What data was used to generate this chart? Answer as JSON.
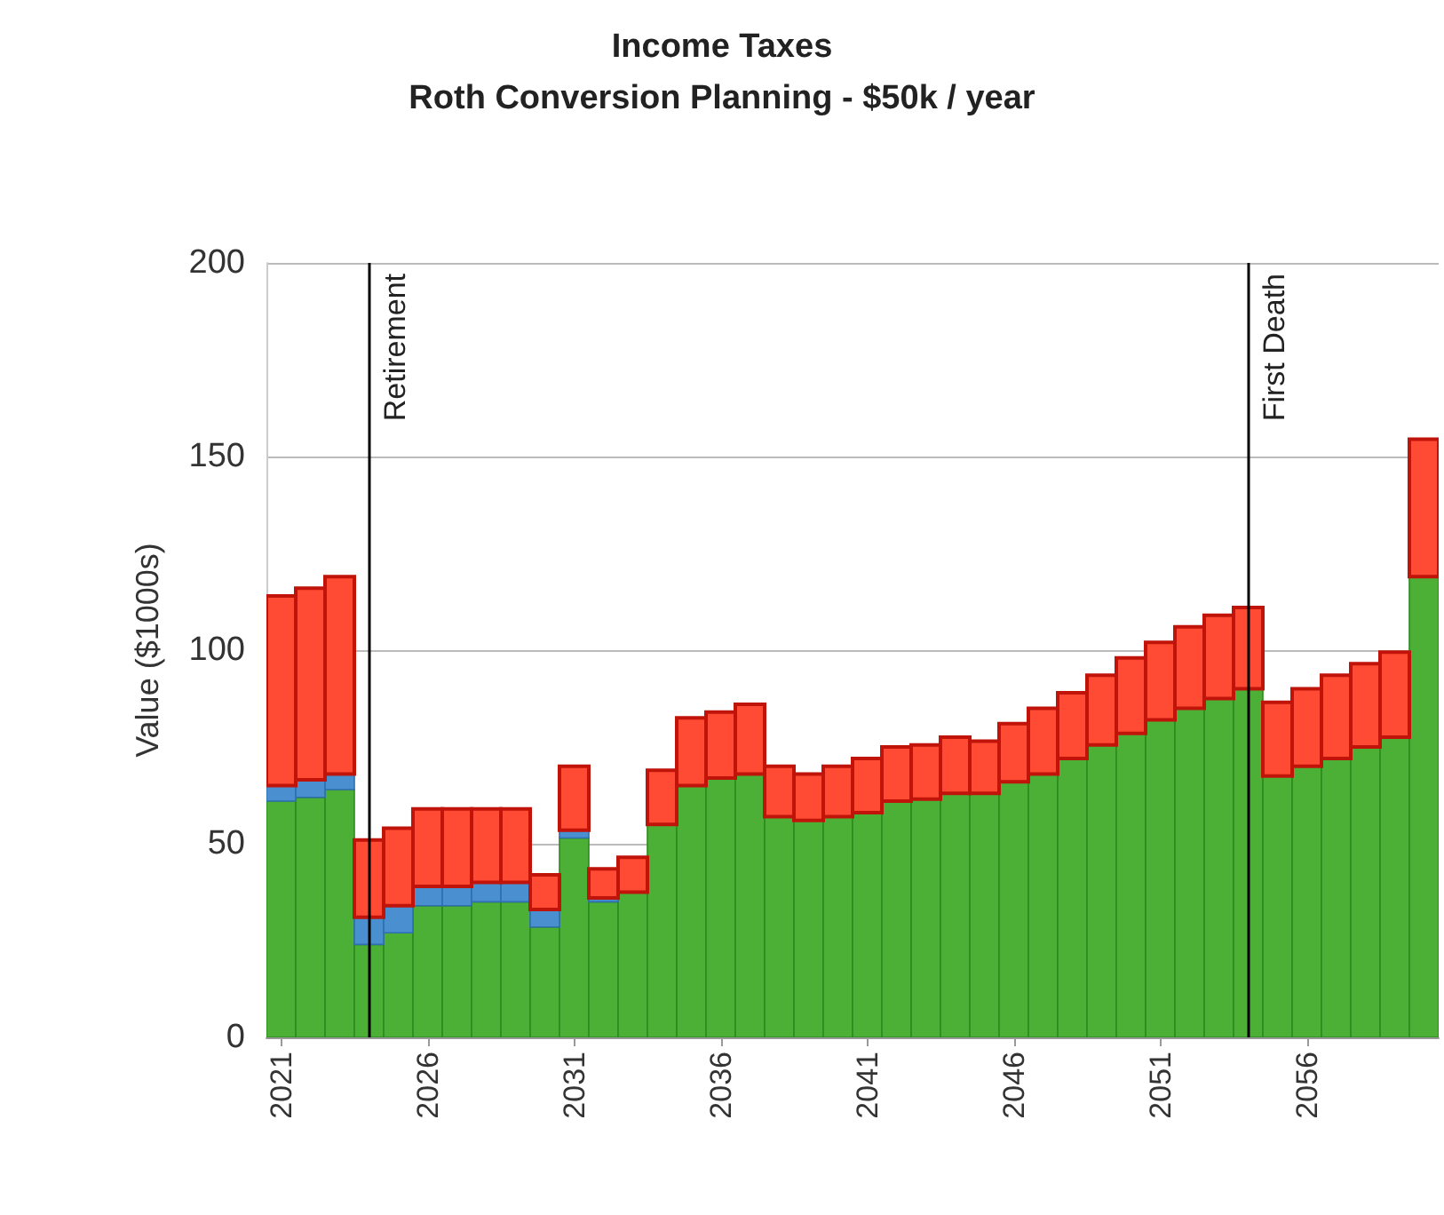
{
  "chart_data": {
    "type": "bar",
    "title": "Income Taxes",
    "subtitle": "Roth Conversion Planning - $50k / year",
    "ylabel": "Value ($1000s)",
    "x": [
      2021,
      2022,
      2023,
      2024,
      2025,
      2026,
      2027,
      2028,
      2029,
      2030,
      2031,
      2032,
      2033,
      2034,
      2035,
      2036,
      2037,
      2038,
      2039,
      2040,
      2041,
      2042,
      2043,
      2044,
      2045,
      2046,
      2047,
      2048,
      2049,
      2050,
      2051,
      2052,
      2053,
      2054,
      2055,
      2056,
      2057,
      2058,
      2059,
      2060
    ],
    "xlim": [
      2020.5,
      2060.5
    ],
    "xticks": [
      2021,
      2026,
      2031,
      2036,
      2041,
      2046,
      2051,
      2056
    ],
    "ylim": [
      0,
      200
    ],
    "yticks": [
      0,
      50,
      100,
      150,
      200
    ],
    "grid": "y",
    "stacked": true,
    "series": [
      {
        "color": "#4db036",
        "values": [
          61,
          62,
          64,
          24,
          27,
          34,
          34,
          35,
          35,
          28.5,
          51.5,
          35,
          37.5,
          55,
          65,
          67,
          68,
          57,
          56,
          57,
          58,
          61,
          61.5,
          63,
          63,
          66,
          68,
          72,
          75.5,
          78.5,
          82,
          85,
          87.5,
          90,
          67.5,
          70,
          72,
          75,
          77.5,
          119
        ]
      },
      {
        "color": "#4a8fd0",
        "values": [
          4,
          4.5,
          4,
          7,
          7,
          5,
          5,
          5,
          5,
          4.5,
          2,
          1,
          0,
          0,
          0,
          0,
          0,
          0,
          0,
          0,
          0,
          0,
          0,
          0,
          0,
          0,
          0,
          0,
          0,
          0,
          0,
          0,
          0,
          0,
          0,
          0,
          0,
          0,
          0,
          0
        ]
      },
      {
        "color": "#ff4b33",
        "values": [
          49,
          49.5,
          51,
          20,
          20,
          20,
          20,
          19,
          19,
          9,
          16.5,
          7.5,
          9,
          14,
          17.5,
          17,
          18,
          13,
          12,
          13,
          14,
          14,
          14,
          14.5,
          13.5,
          15,
          17,
          17,
          18,
          19.5,
          20,
          21,
          21.5,
          21,
          19,
          20,
          21.5,
          21.5,
          22,
          35.5
        ]
      }
    ],
    "ref_lines": [
      {
        "axis": "x",
        "value": 2024,
        "label": "Retirement",
        "color": "#000000"
      },
      {
        "axis": "x",
        "value": 2054,
        "label": "First Death",
        "color": "#000000"
      }
    ]
  }
}
